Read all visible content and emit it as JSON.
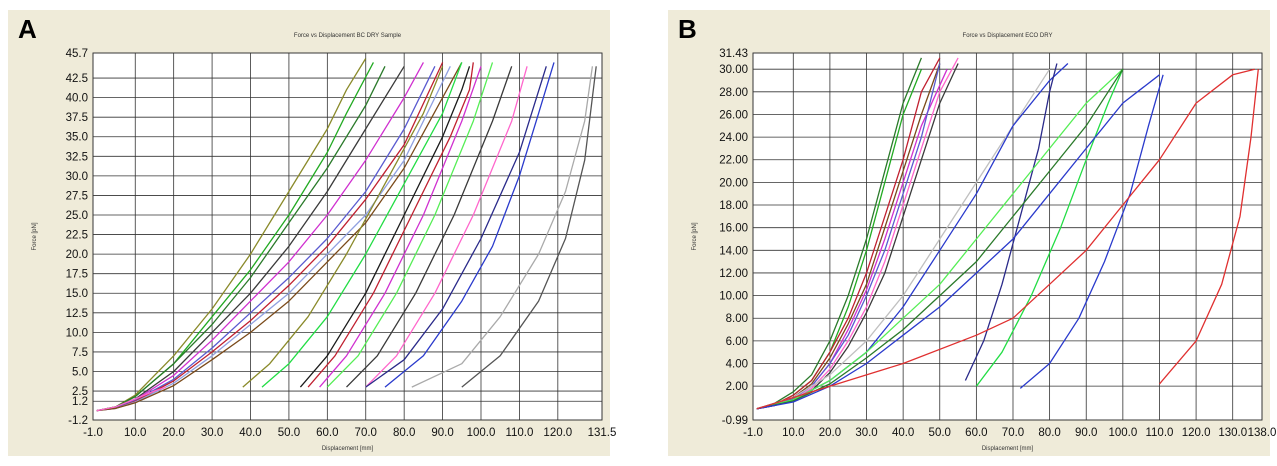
{
  "panels": [
    {
      "letter": "A",
      "chart_data": {
        "type": "line",
        "title": "Force vs Displacement BC DRY Sample",
        "xlabel": "Displacement [mm]",
        "ylabel": "Force [pN]",
        "xlim": [
          -1.0,
          131.5
        ],
        "ylim": [
          -1.2,
          45.7
        ],
        "xticks": [
          "-1.0",
          "10.0",
          "20.0",
          "30.0",
          "40.0",
          "50.0",
          "60.0",
          "70.0",
          "80.0",
          "90.0",
          "100.0",
          "110.0",
          "120.0",
          "131.5"
        ],
        "yticks": [
          "-1.2",
          "1.2",
          "2.5",
          "5.0",
          "7.5",
          "10.0",
          "12.5",
          "15.0",
          "17.5",
          "20.0",
          "22.5",
          "25.0",
          "27.5",
          "30.0",
          "32.5",
          "35.0",
          "37.5",
          "40.0",
          "42.5",
          "45.7"
        ],
        "grid": true,
        "series": [
          {
            "color": "#8a8a2a",
            "x": [
              0,
              5,
              10,
              20,
              30,
              40,
              50,
              60,
              65,
              70
            ],
            "y": [
              0,
              0.5,
              2,
              7,
              13,
              20,
              28,
              36,
              41,
              45
            ]
          },
          {
            "color": "#22aa22",
            "x": [
              0,
              5,
              10,
              20,
              30,
              40,
              50,
              60,
              65,
              72
            ],
            "y": [
              0,
              0.5,
              1.8,
              6,
              12,
              18,
              25,
              33,
              38,
              44.5
            ]
          },
          {
            "color": "#2a7a2a",
            "x": [
              0,
              5,
              10,
              20,
              30,
              40,
              50,
              60,
              70,
              75
            ],
            "y": [
              0,
              0.5,
              1.8,
              6,
              11,
              17,
              24,
              31,
              39,
              44
            ]
          },
          {
            "color": "#3a3a3a",
            "x": [
              0,
              5,
              10,
              20,
              30,
              40,
              50,
              60,
              70,
              80
            ],
            "y": [
              0,
              0.4,
              1.5,
              5,
              10,
              15,
              21,
              28,
              36,
              44
            ]
          },
          {
            "color": "#d030d0",
            "x": [
              0,
              5,
              10,
              20,
              30,
              40,
              50,
              60,
              70,
              80,
              85
            ],
            "y": [
              0,
              0.4,
              1.4,
              4.5,
              9,
              14,
              19,
              25,
              32,
              40,
              44.5
            ]
          },
          {
            "color": "#5a5ad0",
            "x": [
              0,
              5,
              10,
              20,
              30,
              40,
              50,
              60,
              70,
              80,
              88
            ],
            "y": [
              0,
              0.4,
              1.3,
              4,
              8,
              12.5,
              17,
              22,
              28,
              36,
              44
            ]
          },
          {
            "color": "#c02030",
            "x": [
              0,
              5,
              10,
              20,
              30,
              40,
              50,
              60,
              70,
              80,
              90
            ],
            "y": [
              0,
              0.3,
              1.2,
              3.8,
              7.5,
              11.5,
              16,
              21,
              27,
              34,
              44.5
            ]
          },
          {
            "color": "#90a0e0",
            "x": [
              0,
              5,
              10,
              20,
              30,
              40,
              50,
              60,
              70,
              80,
              92
            ],
            "y": [
              0,
              0.3,
              1.1,
              3.5,
              7,
              11,
              15,
              20,
              25,
              32,
              44
            ]
          },
          {
            "color": "#7a4a1a",
            "x": [
              0,
              5,
              10,
              20,
              30,
              40,
              50,
              60,
              70,
              80,
              95
            ],
            "y": [
              0,
              0.3,
              1.0,
              3.2,
              6.5,
              10,
              14,
              19,
              24,
              31,
              44.5
            ]
          },
          {
            "color": "#ff66cc",
            "x": [
              0,
              5,
              10,
              15,
              18
            ],
            "y": [
              0,
              0.5,
              1.5,
              2.5,
              3
            ]
          },
          {
            "color": "#8a8a2a",
            "x": [
              38,
              45,
              55,
              65,
              75,
              85,
              90
            ],
            "y": [
              3,
              6,
              12,
              20,
              29,
              38,
              44
            ]
          },
          {
            "color": "#22dd44",
            "x": [
              43,
              50,
              60,
              70,
              80,
              90,
              95
            ],
            "y": [
              3,
              6,
              12,
              20,
              29,
              38,
              44.5
            ]
          },
          {
            "color": "#1a1a1a",
            "x": [
              53,
              60,
              70,
              80,
              90,
              95,
              97
            ],
            "y": [
              3,
              7,
              15,
              25,
              35,
              41,
              44
            ]
          },
          {
            "color": "#c02030",
            "x": [
              55,
              62,
              72,
              82,
              92,
              97,
              98
            ],
            "y": [
              3,
              7,
              15,
              25,
              35,
              41,
              44.5
            ]
          },
          {
            "color": "#d030d0",
            "x": [
              58,
              65,
              75,
              85,
              95,
              100
            ],
            "y": [
              3,
              7,
              15,
              25,
              37,
              44
            ]
          },
          {
            "color": "#55ee55",
            "x": [
              60,
              68,
              78,
              88,
              98,
              103
            ],
            "y": [
              3,
              7,
              15,
              25,
              37,
              44.5
            ]
          },
          {
            "color": "#3a3a3a",
            "x": [
              65,
              73,
              83,
              93,
              103,
              108
            ],
            "y": [
              3,
              7,
              15,
              25,
              37,
              44
            ]
          },
          {
            "color": "#ff66cc",
            "x": [
              70,
              78,
              88,
              98,
              108,
              112
            ],
            "y": [
              3,
              7,
              15,
              25,
              37,
              44
            ]
          },
          {
            "color": "#2a3acc",
            "x": [
              75,
              85,
              95,
              103,
              110,
              115,
              119
            ],
            "y": [
              3,
              7,
              14,
              21,
              30,
              38,
              44.5
            ]
          },
          {
            "color": "#2a2a8a",
            "x": [
              70,
              80,
              90,
              100,
              110,
              117
            ],
            "y": [
              3,
              6.5,
              13,
              22,
              33,
              44
            ]
          },
          {
            "color": "#aaaaaa",
            "x": [
              82,
              95,
              105,
              115,
              122,
              127,
              129
            ],
            "y": [
              3,
              6,
              12,
              20,
              28,
              37,
              44
            ]
          },
          {
            "color": "#555555",
            "x": [
              95,
              105,
              115,
              122,
              127,
              130
            ],
            "y": [
              3,
              7,
              14,
              22,
              32,
              44
            ]
          }
        ]
      }
    },
    {
      "letter": "B",
      "chart_data": {
        "type": "line",
        "title": "Force vs Displacement ECO DRY",
        "xlabel": "Displacement [mm]",
        "ylabel": "Force [pN]",
        "xlim": [
          -1.0,
          138.0
        ],
        "ylim": [
          -0.99,
          31.43
        ],
        "xticks": [
          "-1.0",
          "10.0",
          "20.0",
          "30.0",
          "40.0",
          "50.0",
          "60.0",
          "70.0",
          "80.0",
          "90.0",
          "100.0",
          "110.0",
          "120.0",
          "130.0",
          "138.0"
        ],
        "yticks": [
          "-0.99",
          "2.00",
          "4.00",
          "6.00",
          "8.00",
          "10.00",
          "12.00",
          "14.00",
          "16.00",
          "18.00",
          "20.00",
          "22.00",
          "24.00",
          "26.00",
          "28.00",
          "30.00",
          "31.43"
        ],
        "grid": true,
        "series": [
          {
            "color": "#2a7a2a",
            "x": [
              0,
              5,
              10,
              15,
              20,
              25,
              30,
              35,
              40,
              45
            ],
            "y": [
              0,
              0.5,
              1.5,
              3,
              6,
              10,
              15,
              21,
              27,
              31
            ]
          },
          {
            "color": "#22aa22",
            "x": [
              0,
              5,
              10,
              15,
              20,
              25,
              30,
              35,
              40,
              45
            ],
            "y": [
              0,
              0.4,
              1.2,
              2.5,
              5,
              9,
              14,
              20,
              26,
              30
            ]
          },
          {
            "color": "#c02030",
            "x": [
              0,
              5,
              10,
              15,
              20,
              25,
              30,
              35,
              40,
              45,
              50
            ],
            "y": [
              0,
              0.4,
              1.2,
              2.5,
              5,
              8,
              12,
              17,
              22,
              28,
              31
            ]
          },
          {
            "color": "#7a4a1a",
            "x": [
              0,
              5,
              10,
              15,
              20,
              25,
              30,
              35,
              40,
              45,
              50
            ],
            "y": [
              0,
              0.3,
              1.0,
              2.2,
              4.5,
              7.5,
              11,
              16,
              21,
              26,
              30.5
            ]
          },
          {
            "color": "#d030d0",
            "x": [
              0,
              5,
              10,
              15,
              20,
              25,
              30,
              35,
              40,
              45,
              52
            ],
            "y": [
              0,
              0.3,
              1.0,
              2,
              4,
              7,
              10.5,
              15,
              20,
              25,
              30
            ]
          },
          {
            "color": "#5a5ad0",
            "x": [
              0,
              5,
              10,
              15,
              20,
              25,
              30,
              35,
              40,
              45,
              50
            ],
            "y": [
              0,
              0.3,
              0.9,
              2,
              4,
              6.5,
              10,
              14,
              19,
              24,
              30.5
            ]
          },
          {
            "color": "#ff66cc",
            "x": [
              0,
              5,
              10,
              15,
              20,
              25,
              30,
              35,
              40,
              45,
              50,
              55
            ],
            "y": [
              0,
              0.3,
              0.8,
              1.8,
              3.5,
              6,
              9,
              13,
              18,
              23,
              28,
              31
            ]
          },
          {
            "color": "#3a3a3a",
            "x": [
              0,
              5,
              10,
              15,
              20,
              25,
              30,
              35,
              40,
              45,
              50,
              55
            ],
            "y": [
              0,
              0.3,
              0.8,
              1.6,
              3.2,
              5.5,
              8.5,
              12,
              17,
              22,
              27,
              30.5
            ]
          },
          {
            "color": "#c0c0c0",
            "x": [
              0,
              10,
              20,
              30,
              40,
              50,
              60,
              70,
              80
            ],
            "y": [
              0,
              1,
              3,
              6,
              10,
              15,
              20,
              25,
              30
            ]
          },
          {
            "color": "#2a3acc",
            "x": [
              0,
              10,
              20,
              30,
              40,
              50,
              60,
              70,
              80,
              85
            ],
            "y": [
              0,
              0.8,
              2.5,
              5,
              9,
              14,
              19,
              25,
              29,
              30.5
            ]
          },
          {
            "color": "#2a2a8a",
            "x": [
              57,
              62,
              67,
              72,
              77,
              80,
              82
            ],
            "y": [
              2.5,
              6,
              11,
              17,
              23,
              28,
              30.5
            ]
          },
          {
            "color": "#55ee55",
            "x": [
              0,
              10,
              20,
              30,
              40,
              50,
              60,
              70,
              80,
              90,
              100
            ],
            "y": [
              0,
              0.8,
              2.5,
              5,
              8,
              11,
              15,
              19,
              23,
              27,
              30
            ]
          },
          {
            "color": "#22dd44",
            "x": [
              60,
              67,
              75,
              83,
              90,
              96,
              100
            ],
            "y": [
              2,
              5,
              10,
              16,
              22,
              27,
              30
            ]
          },
          {
            "color": "#2a7a2a",
            "x": [
              0,
              10,
              20,
              30,
              40,
              50,
              60,
              70,
              80,
              90,
              100
            ],
            "y": [
              0,
              0.7,
              2.2,
              4.5,
              7,
              10,
              13,
              17,
              21,
              25,
              30
            ]
          },
          {
            "color": "#2a3acc",
            "x": [
              0,
              10,
              20,
              30,
              40,
              50,
              60,
              70,
              80,
              90,
              100,
              110
            ],
            "y": [
              0,
              0.6,
              2,
              4,
              6.5,
              9,
              12,
              15,
              19,
              23,
              27,
              29.5
            ]
          },
          {
            "color": "#2a3acc",
            "x": [
              72,
              80,
              88,
              95,
              102,
              107,
              111
            ],
            "y": [
              1.8,
              4,
              8,
              13,
              19,
              25,
              29.5
            ]
          },
          {
            "color": "#e03030",
            "x": [
              0,
              20,
              40,
              60,
              70,
              80,
              90,
              100,
              110,
              120,
              130,
              136
            ],
            "y": [
              0,
              2,
              4,
              6.5,
              8,
              11,
              14,
              18,
              22,
              27,
              29.5,
              30
            ]
          },
          {
            "color": "#e03030",
            "x": [
              110,
              120,
              127,
              132,
              135,
              137
            ],
            "y": [
              2.2,
              6,
              11,
              17,
              24,
              30
            ]
          }
        ]
      }
    }
  ]
}
